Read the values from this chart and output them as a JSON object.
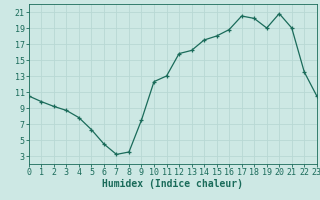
{
  "x": [
    0,
    1,
    2,
    3,
    4,
    5,
    6,
    7,
    8,
    9,
    10,
    11,
    12,
    13,
    14,
    15,
    16,
    17,
    18,
    19,
    20,
    21,
    22,
    23
  ],
  "y": [
    10.5,
    9.8,
    9.2,
    8.7,
    7.8,
    6.3,
    4.5,
    3.2,
    3.5,
    7.5,
    12.3,
    13.0,
    15.8,
    16.2,
    17.5,
    18.0,
    18.8,
    20.5,
    20.2,
    19.0,
    20.8,
    19.0,
    13.5,
    10.5
  ],
  "xlabel": "Humidex (Indice chaleur)",
  "xlim": [
    0,
    23
  ],
  "ylim": [
    2,
    22
  ],
  "yticks": [
    3,
    5,
    7,
    9,
    11,
    13,
    15,
    17,
    19,
    21
  ],
  "xticks": [
    0,
    1,
    2,
    3,
    4,
    5,
    6,
    7,
    8,
    9,
    10,
    11,
    12,
    13,
    14,
    15,
    16,
    17,
    18,
    19,
    20,
    21,
    22,
    23
  ],
  "line_color": "#1a6b5a",
  "marker": "+",
  "bg_color": "#cde8e4",
  "grid_color": "#b8d8d4",
  "axis_color": "#1a6b5a",
  "xlabel_fontsize": 7,
  "tick_fontsize": 6
}
